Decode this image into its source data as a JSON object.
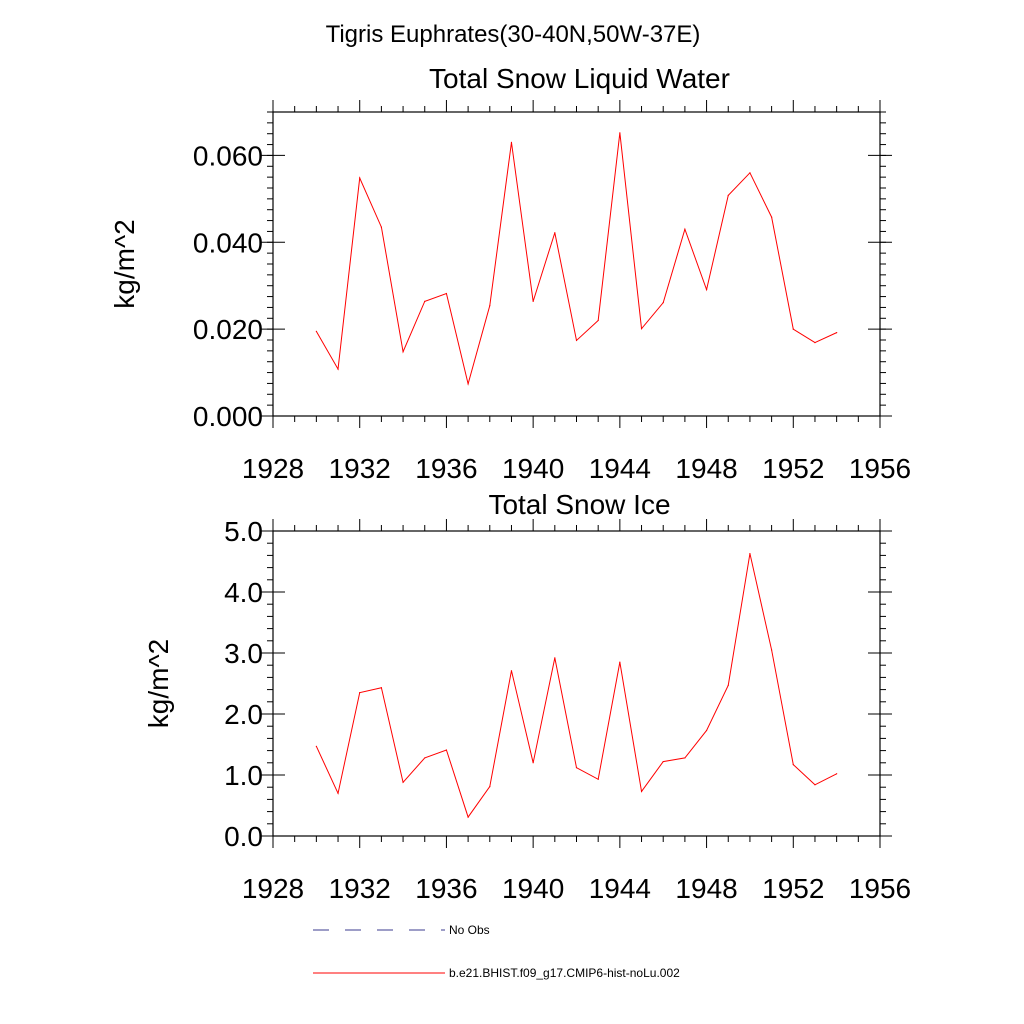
{
  "figure_title": "Tigris Euphrates(30-40N,50W-37E)",
  "colors": {
    "model": "#ff0000",
    "obs": "#3b3b8f",
    "axis": "#000000"
  },
  "legend": {
    "placement": "bottom",
    "items": [
      {
        "label": "No Obs",
        "style": "dashed",
        "color": "#3b3b8f"
      },
      {
        "label": "b.e21.BHIST.f09_g17.CMIP6-hist-noLu.002",
        "style": "solid",
        "color": "#ff0000"
      }
    ]
  },
  "chart_data": [
    {
      "type": "line",
      "title": "Total Snow Liquid Water",
      "xlabel": "",
      "ylabel": "kg/m^2",
      "xlim": [
        1928,
        1956
      ],
      "ylim": [
        0,
        0.07
      ],
      "x_ticks": [
        1928,
        1932,
        1936,
        1940,
        1944,
        1948,
        1952,
        1956
      ],
      "x_tick_labels": [
        "1928",
        "1932",
        "1936",
        "1940",
        "1944",
        "1948",
        "1952",
        "1956"
      ],
      "y_ticks": [
        0,
        0.02,
        0.04,
        0.06
      ],
      "y_tick_labels": [
        "0.000",
        "0.020",
        "0.040",
        "0.060"
      ],
      "grid": false,
      "x": [
        1930,
        1931,
        1932,
        1933,
        1934,
        1935,
        1936,
        1937,
        1938,
        1939,
        1940,
        1941,
        1942,
        1943,
        1944,
        1945,
        1946,
        1947,
        1948,
        1949,
        1950,
        1951,
        1952,
        1953,
        1954
      ],
      "series": [
        {
          "name": "b.e21.BHIST.f09_g17.CMIP6-hist-noLu.002",
          "values": [
            0.0195,
            0.0108,
            0.0548,
            0.0435,
            0.0148,
            0.0264,
            0.0282,
            0.0074,
            0.0254,
            0.063,
            0.0264,
            0.0422,
            0.0174,
            0.022,
            0.0652,
            0.0201,
            0.0261,
            0.043,
            0.0291,
            0.0508,
            0.056,
            0.0458,
            0.02,
            0.0169,
            0.0192
          ]
        }
      ]
    },
    {
      "type": "line",
      "title": "Total Snow Ice",
      "xlabel": "",
      "ylabel": "kg/m^2",
      "xlim": [
        1928,
        1956
      ],
      "ylim": [
        0,
        5
      ],
      "x_ticks": [
        1928,
        1932,
        1936,
        1940,
        1944,
        1948,
        1952,
        1956
      ],
      "x_tick_labels": [
        "1928",
        "1932",
        "1936",
        "1940",
        "1944",
        "1948",
        "1952",
        "1956"
      ],
      "y_ticks": [
        0,
        1,
        2,
        3,
        4,
        5
      ],
      "y_tick_labels": [
        "0.0",
        "1.0",
        "2.0",
        "3.0",
        "4.0",
        "5.0"
      ],
      "grid": false,
      "x": [
        1930,
        1931,
        1932,
        1933,
        1934,
        1935,
        1936,
        1937,
        1938,
        1939,
        1940,
        1941,
        1942,
        1943,
        1944,
        1945,
        1946,
        1947,
        1948,
        1949,
        1950,
        1951,
        1952,
        1953,
        1954
      ],
      "series": [
        {
          "name": "b.e21.BHIST.f09_g17.CMIP6-hist-noLu.002",
          "values": [
            1.47,
            0.7,
            2.35,
            2.43,
            0.88,
            1.28,
            1.41,
            0.31,
            0.81,
            2.71,
            1.2,
            2.92,
            1.12,
            0.93,
            2.85,
            0.73,
            1.22,
            1.28,
            1.73,
            2.47,
            4.63,
            3.05,
            1.17,
            0.84,
            1.02
          ]
        }
      ]
    }
  ]
}
